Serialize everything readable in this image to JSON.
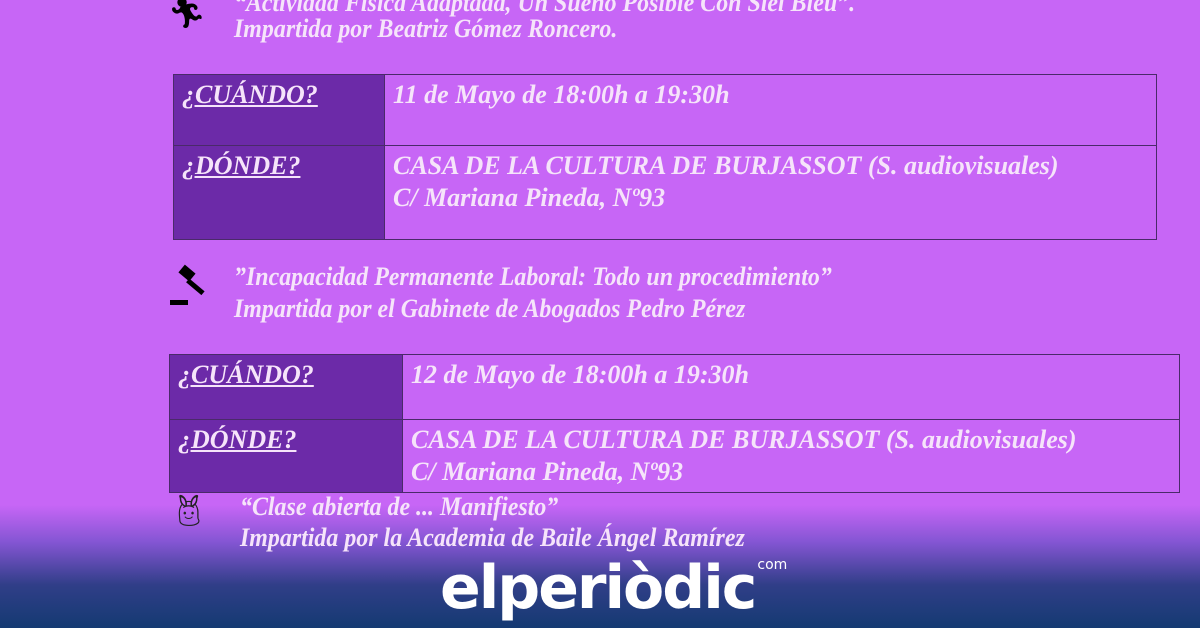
{
  "events": [
    {
      "title": "“Actividad Física Adaptada, Un Sueño Posible Con Siel Bleu”.",
      "speaker": "Impartida por Beatriz Gómez Roncero.",
      "icon": "runner-icon",
      "when_label": "¿CUÁNDO?",
      "when": "11 de Mayo de 18:00h a 19:30h",
      "where_label": "¿DÓNDE?",
      "where": "CASA DE LA CULTURA DE BURJASSOT (S. audiovisuales)",
      "address": "C/ Mariana Pineda, Nº93"
    },
    {
      "title": "”Incapacidad Permanente Laboral: Todo un procedimiento”",
      "speaker": "Impartida por el Gabinete de Abogados Pedro Pérez",
      "icon": "gavel-icon",
      "when_label": "¿CUÁNDO?",
      "when": "12 de Mayo de 18:00h a 19:30h",
      "where_label": "¿DÓNDE?",
      "where": "CASA DE LA CULTURA DE BURJASSOT (S. audiovisuales)",
      "address": "C/ Mariana Pineda, Nº93"
    },
    {
      "title": "“Clase abierta de ... Manifiesto”",
      "speaker": "Impartida por la Academia de Baile Ángel Ramírez",
      "icon": "dancers-icon"
    }
  ],
  "brand": {
    "name": "elperiòdic",
    "suffix": "com"
  },
  "colors": {
    "background": "#c766f6",
    "label_cell": "#6c2aa8",
    "footer": "#143a72"
  }
}
